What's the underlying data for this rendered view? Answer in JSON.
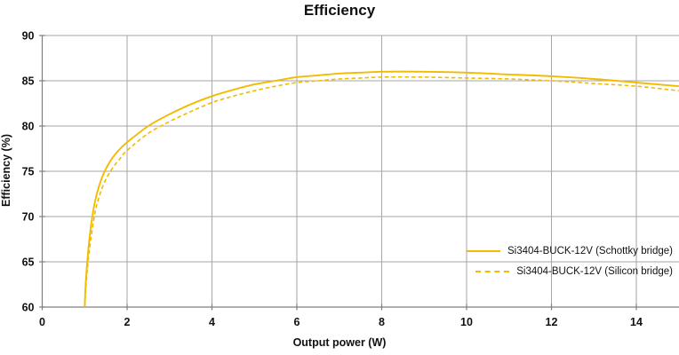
{
  "chart_data": {
    "type": "line",
    "title": "Efficiency",
    "xlabel": "Output power (W)",
    "ylabel": "Efficiency (%)",
    "xlim": [
      0,
      15
    ],
    "ylim": [
      60,
      90
    ],
    "x_ticks": [
      0,
      2,
      4,
      6,
      8,
      10,
      12,
      14
    ],
    "y_ticks": [
      60,
      65,
      70,
      75,
      80,
      85,
      90
    ],
    "grid": true,
    "legend_position": "inside-bottom-right",
    "colors": {
      "line": "#F3BB00",
      "grid": "#A6A6A6",
      "axis": "#7F7F7F",
      "text": "#111111"
    },
    "series": [
      {
        "name": "Si3404-BUCK-12V (Schottky bridge)",
        "style": "solid",
        "color": "#F3BB00",
        "points": [
          [
            1.0,
            60
          ],
          [
            1.03,
            63
          ],
          [
            1.08,
            66
          ],
          [
            1.15,
            69
          ],
          [
            1.25,
            71.8
          ],
          [
            1.4,
            74.2
          ],
          [
            1.6,
            76.1
          ],
          [
            1.8,
            77.3
          ],
          [
            2.0,
            78.2
          ],
          [
            2.5,
            80.0
          ],
          [
            3.0,
            81.3
          ],
          [
            3.5,
            82.4
          ],
          [
            4.0,
            83.3
          ],
          [
            4.5,
            84.0
          ],
          [
            5.0,
            84.6
          ],
          [
            5.5,
            85.0
          ],
          [
            6.0,
            85.4
          ],
          [
            6.5,
            85.6
          ],
          [
            7.0,
            85.8
          ],
          [
            7.5,
            85.9
          ],
          [
            8.0,
            86.0
          ],
          [
            9.0,
            86.0
          ],
          [
            10.0,
            85.9
          ],
          [
            11.0,
            85.7
          ],
          [
            12.0,
            85.5
          ],
          [
            13.0,
            85.2
          ],
          [
            14.0,
            84.8
          ],
          [
            15.0,
            84.4
          ]
        ]
      },
      {
        "name": "Si3404-BUCK-12V (Silicon bridge)",
        "style": "dashed",
        "color": "#F3BB00",
        "points": [
          [
            1.0,
            60
          ],
          [
            1.04,
            63
          ],
          [
            1.1,
            65.8
          ],
          [
            1.18,
            68.6
          ],
          [
            1.28,
            71.2
          ],
          [
            1.45,
            73.6
          ],
          [
            1.65,
            75.3
          ],
          [
            1.85,
            76.5
          ],
          [
            2.0,
            77.3
          ],
          [
            2.5,
            79.2
          ],
          [
            3.0,
            80.5
          ],
          [
            3.5,
            81.6
          ],
          [
            4.0,
            82.6
          ],
          [
            4.5,
            83.3
          ],
          [
            5.0,
            83.9
          ],
          [
            5.5,
            84.4
          ],
          [
            6.0,
            84.8
          ],
          [
            6.5,
            85.0
          ],
          [
            7.0,
            85.2
          ],
          [
            7.5,
            85.3
          ],
          [
            8.0,
            85.4
          ],
          [
            9.0,
            85.4
          ],
          [
            10.0,
            85.3
          ],
          [
            11.0,
            85.2
          ],
          [
            12.0,
            85.0
          ],
          [
            13.0,
            84.7
          ],
          [
            14.0,
            84.4
          ],
          [
            15.0,
            83.9
          ]
        ]
      }
    ]
  }
}
